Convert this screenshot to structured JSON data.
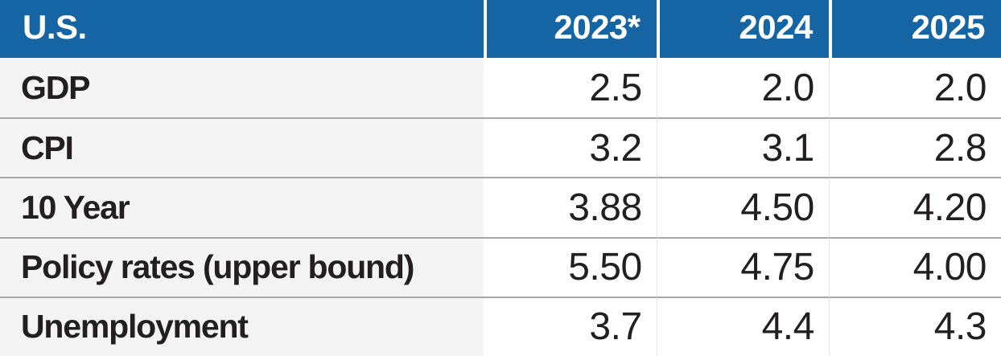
{
  "table": {
    "header": {
      "label": "U.S.",
      "years": [
        "2023*",
        "2024",
        "2025"
      ]
    },
    "rows": [
      {
        "label": "GDP",
        "values": [
          "2.5",
          "2.0",
          "2.0"
        ]
      },
      {
        "label": "CPI",
        "values": [
          "3.2",
          "3.1",
          "2.8"
        ]
      },
      {
        "label": "10 Year",
        "values": [
          "3.88",
          "4.50",
          "4.20"
        ]
      },
      {
        "label": "Policy rates (upper bound)",
        "values": [
          "5.50",
          "4.75",
          "4.00"
        ]
      },
      {
        "label": "Unemployment",
        "values": [
          "3.7",
          "4.4",
          "4.3"
        ]
      }
    ],
    "colors": {
      "header_bg": "#1565a4",
      "header_text": "#ffffff",
      "label_bg": "#f4f4f4",
      "value_bg": "#ffffff",
      "row_divider": "#a5a8ab",
      "col_divider": "#e3e3e3",
      "text": "#231f20"
    }
  },
  "chart_data": {
    "type": "table",
    "title": "U.S.",
    "columns": [
      "U.S.",
      "2023*",
      "2024",
      "2025"
    ],
    "rows": [
      [
        "GDP",
        2.5,
        2.0,
        2.0
      ],
      [
        "CPI",
        3.2,
        3.1,
        2.8
      ],
      [
        "10 Year",
        3.88,
        4.5,
        4.2
      ],
      [
        "Policy rates (upper bound)",
        5.5,
        4.75,
        4.0
      ],
      [
        "Unemployment",
        3.7,
        4.4,
        4.3
      ]
    ]
  }
}
